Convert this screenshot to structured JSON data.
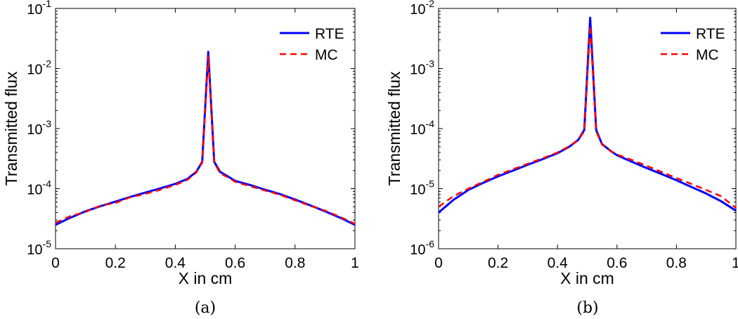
{
  "chart_data": [
    {
      "type": "line",
      "caption": "(a)",
      "xlabel": "X in cm",
      "ylabel": "Transmitted flux",
      "yscale": "log",
      "xlim": [
        0,
        1
      ],
      "ylim": [
        1e-05,
        0.1
      ],
      "xticks": [
        0,
        0.2,
        0.4,
        0.6,
        0.8,
        1
      ],
      "xtick_labels": [
        "0",
        "0.2",
        "0.4",
        "0.6",
        "0.8",
        "1"
      ],
      "ytick_labels": [
        {
          "base": "10",
          "exp": "-5"
        },
        {
          "base": "10",
          "exp": "-4"
        },
        {
          "base": "10",
          "exp": "-3"
        },
        {
          "base": "10",
          "exp": "-2"
        },
        {
          "base": "10",
          "exp": "-1"
        }
      ],
      "legend_position": "top-right",
      "series": [
        {
          "name": "RTE",
          "color": "#0000ff",
          "style": "solid",
          "x": [
            0,
            0.05,
            0.1,
            0.15,
            0.2,
            0.25,
            0.3,
            0.35,
            0.4,
            0.44,
            0.47,
            0.49,
            0.51,
            0.53,
            0.55,
            0.58,
            0.6,
            0.65,
            0.7,
            0.75,
            0.8,
            0.85,
            0.9,
            0.95,
            1
          ],
          "y": [
            2.5e-05,
            3.3e-05,
            4.2e-05,
            5.1e-05,
            6.1e-05,
            7.3e-05,
            8.6e-05,
            0.000101,
            0.00012,
            0.000145,
            0.00019,
            0.00028,
            0.019,
            0.00028,
            0.00019,
            0.000155,
            0.000135,
            0.000115,
            9.6e-05,
            8.1e-05,
            6.6e-05,
            5.3e-05,
            4.2e-05,
            3.3e-05,
            2.5e-05
          ]
        },
        {
          "name": "MC",
          "color": "#ff0000",
          "style": "dashed",
          "x": [
            0,
            0.05,
            0.1,
            0.15,
            0.2,
            0.25,
            0.3,
            0.35,
            0.4,
            0.44,
            0.47,
            0.49,
            0.51,
            0.53,
            0.55,
            0.58,
            0.6,
            0.65,
            0.7,
            0.75,
            0.8,
            0.85,
            0.9,
            0.95,
            1
          ],
          "y": [
            2.7e-05,
            3.5e-05,
            4.1e-05,
            5.2e-05,
            5.8e-05,
            7.2e-05,
            8.2e-05,
            9.6e-05,
            0.000115,
            0.00014,
            0.000185,
            0.00027,
            0.016,
            0.00027,
            0.00018,
            0.00015,
            0.00013,
            0.00011,
            9.3e-05,
            7.9e-05,
            6.4e-05,
            5.2e-05,
            4.3e-05,
            3.4e-05,
            2.6e-05
          ]
        }
      ]
    },
    {
      "type": "line",
      "caption": "(b)",
      "xlabel": "X in cm",
      "ylabel": "Transmitted flux",
      "yscale": "log",
      "xlim": [
        0,
        1
      ],
      "ylim": [
        1e-06,
        0.01
      ],
      "xticks": [
        0,
        0.2,
        0.4,
        0.6,
        0.8,
        1
      ],
      "xtick_labels": [
        "0",
        "0.2",
        "0.4",
        "0.6",
        "0.8",
        "1"
      ],
      "ytick_labels": [
        {
          "base": "10",
          "exp": "-6"
        },
        {
          "base": "10",
          "exp": "-5"
        },
        {
          "base": "10",
          "exp": "-4"
        },
        {
          "base": "10",
          "exp": "-3"
        },
        {
          "base": "10",
          "exp": "-2"
        }
      ],
      "legend_position": "top-right",
      "series": [
        {
          "name": "RTE",
          "color": "#0000ff",
          "style": "solid",
          "x": [
            0,
            0.05,
            0.1,
            0.15,
            0.2,
            0.25,
            0.3,
            0.35,
            0.4,
            0.44,
            0.47,
            0.49,
            0.51,
            0.53,
            0.55,
            0.58,
            0.6,
            0.65,
            0.7,
            0.75,
            0.8,
            0.85,
            0.9,
            0.95,
            1
          ],
          "y": [
            4e-06,
            6.5e-06,
            9.5e-06,
            1.25e-05,
            1.6e-05,
            2e-05,
            2.5e-05,
            3.1e-05,
            3.9e-05,
            5e-05,
            6.5e-05,
            9.5e-05,
            0.007,
            9.5e-05,
            5.5e-05,
            4.2e-05,
            3.6e-05,
            2.8e-05,
            2.2e-05,
            1.75e-05,
            1.38e-05,
            1.07e-05,
            8.3e-06,
            6.2e-06,
            4.3e-06
          ]
        },
        {
          "name": "MC",
          "color": "#ff0000",
          "style": "dashed",
          "x": [
            0,
            0.05,
            0.1,
            0.15,
            0.2,
            0.25,
            0.3,
            0.35,
            0.4,
            0.44,
            0.47,
            0.49,
            0.51,
            0.53,
            0.55,
            0.58,
            0.6,
            0.65,
            0.7,
            0.75,
            0.8,
            0.85,
            0.9,
            0.95,
            1
          ],
          "y": [
            5e-06,
            7.5e-06,
            1e-05,
            1.3e-05,
            1.7e-05,
            2.1e-05,
            2.6e-05,
            3.2e-05,
            4e-05,
            5.1e-05,
            6.5e-05,
            9e-05,
            0.0052,
            9e-05,
            5.4e-05,
            4.2e-05,
            3.7e-05,
            3e-05,
            2.4e-05,
            1.9e-05,
            1.5e-05,
            1.2e-05,
            9.5e-06,
            7.5e-06,
            4.8e-06
          ]
        }
      ]
    }
  ]
}
